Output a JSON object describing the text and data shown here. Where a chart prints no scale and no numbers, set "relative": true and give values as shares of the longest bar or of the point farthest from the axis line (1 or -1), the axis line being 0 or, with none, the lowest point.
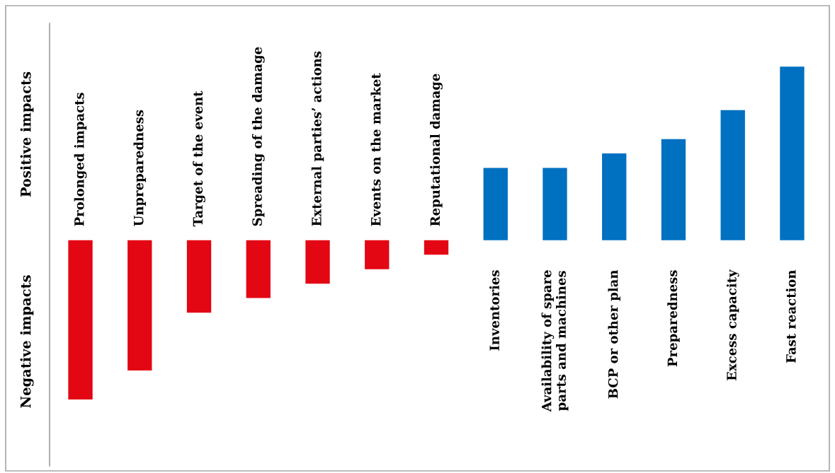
{
  "chart_data": {
    "type": "bar",
    "relative": true,
    "categories": [
      "Prolonged impacts",
      "Unpreparedness",
      "Target of the event",
      "Spreading of the damage",
      "External parties’ actions",
      "Events on the market",
      "Reputational damage",
      "Inventories",
      "Availability of spare\nparts and machines",
      "BCP or other plan",
      "Preparedness",
      "Excess capacity",
      "Fast reaction"
    ],
    "values": [
      -0.917,
      -0.75,
      -0.417,
      -0.333,
      -0.25,
      -0.167,
      -0.083,
      0.417,
      0.417,
      0.5,
      0.583,
      0.75,
      1.0
    ],
    "colors": [
      "#e30613",
      "#e30613",
      "#e30613",
      "#e30613",
      "#e30613",
      "#e30613",
      "#e30613",
      "#0070c0",
      "#0070c0",
      "#0070c0",
      "#0070c0",
      "#0070c0",
      "#0070c0"
    ],
    "annotations": [
      "Positive impacts",
      "Negative impacts"
    ]
  }
}
